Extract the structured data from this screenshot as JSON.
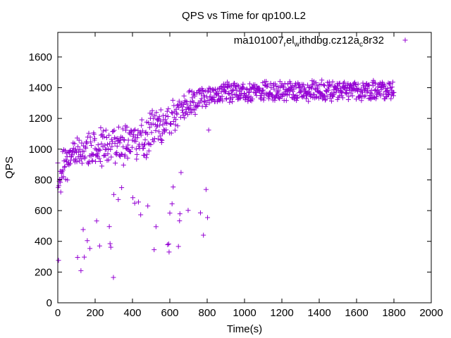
{
  "chart_data": {
    "type": "scatter",
    "title": "QPS vs Time for qp100.L2",
    "xlabel": "Time(s)",
    "ylabel": "QPS",
    "xlim": [
      0,
      2000
    ],
    "ylim": [
      0,
      1760
    ],
    "xticks": [
      0,
      200,
      400,
      600,
      800,
      1000,
      1200,
      1400,
      1600,
      1800,
      2000
    ],
    "yticks": [
      0,
      200,
      400,
      600,
      800,
      1000,
      1200,
      1400,
      1600
    ],
    "xtick_labels": [
      "0",
      "200",
      "400",
      "600",
      "800",
      "1000",
      "1200",
      "1400",
      "1600",
      "1800",
      "2000"
    ],
    "ytick_labels": [
      "0",
      "200",
      "400",
      "600",
      "800",
      "1000",
      "1200",
      "1400",
      "1600"
    ],
    "grid": false,
    "legend_position": "top-right",
    "marker": "plus",
    "series": [
      {
        "name": "ma101007relwithdbg.cz12ac8r32",
        "legend": {
          "parts": [
            {
              "t": "ma101007",
              "sub": false
            },
            {
              "t": "r",
              "sub": true
            },
            {
              "t": "el",
              "sub": false
            },
            {
              "t": "w",
              "sub": true
            },
            {
              "t": "ithdbg.cz12a",
              "sub": false
            },
            {
              "t": "c",
              "sub": true
            },
            {
              "t": "8r32",
              "sub": false
            }
          ]
        },
        "color": "#9400d3",
        "x_range": [
          0,
          1800
        ],
        "x_step": 2,
        "trend": [
          [
            0,
            820
          ],
          [
            50,
            920
          ],
          [
            100,
            980
          ],
          [
            200,
            1010
          ],
          [
            300,
            1020
          ],
          [
            400,
            1040
          ],
          [
            500,
            1100
          ],
          [
            600,
            1200
          ],
          [
            700,
            1290
          ],
          [
            800,
            1350
          ],
          [
            900,
            1370
          ],
          [
            1000,
            1375
          ],
          [
            1200,
            1380
          ],
          [
            1400,
            1380
          ],
          [
            1600,
            1380
          ],
          [
            1800,
            1380
          ]
        ],
        "envelope": [
          [
            0,
            200
          ],
          [
            80,
            160
          ],
          [
            200,
            170
          ],
          [
            400,
            180
          ],
          [
            500,
            200
          ],
          [
            600,
            150
          ],
          [
            700,
            130
          ],
          [
            800,
            100
          ],
          [
            1000,
            90
          ],
          [
            1800,
            90
          ]
        ],
        "outlier_rate": 0.12,
        "seed": 101007
      }
    ]
  }
}
